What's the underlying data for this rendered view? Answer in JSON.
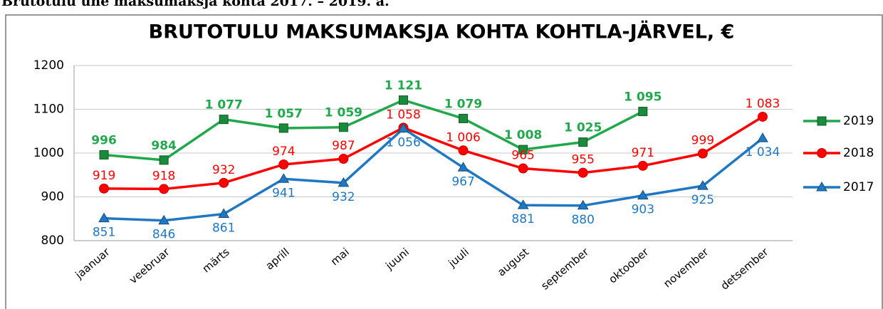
{
  "heading": "Brutotulu ühe maksumaksja kohta 2017. – 2019. a.",
  "chart_data": {
    "type": "line",
    "title": "BRUTOTULU MAKSUMAKSJA KOHTA KOHTLA-JÄRVEL, €",
    "categories": [
      "jaanuar",
      "veebruar",
      "märts",
      "aprill",
      "mai",
      "juuni",
      "juuli",
      "august",
      "september",
      "oktoober",
      "november",
      "detsember"
    ],
    "series": [
      {
        "name": "2019",
        "color": "#22a84c",
        "marker": "square",
        "values": [
          996,
          984,
          1077,
          1057,
          1059,
          1121,
          1079,
          1008,
          1025,
          1095,
          null,
          null
        ],
        "value_labels": [
          "996",
          "984",
          "1 077",
          "1 057",
          "1 059",
          "1 121",
          "1 079",
          "1 008",
          "1 025",
          "1 095",
          null,
          null
        ]
      },
      {
        "name": "2018",
        "color": "#ff0000",
        "marker": "circle",
        "values": [
          919,
          918,
          932,
          974,
          987,
          1058,
          1006,
          965,
          955,
          971,
          999,
          1083
        ],
        "value_labels": [
          "919",
          "918",
          "932",
          "974",
          "987",
          "1 058",
          "1 006",
          "965",
          "955",
          "971",
          "999",
          "1 083"
        ]
      },
      {
        "name": "2017",
        "color": "#1f78c1",
        "marker": "triangle",
        "values": [
          851,
          846,
          861,
          941,
          932,
          1056,
          967,
          881,
          880,
          903,
          925,
          1034
        ],
        "value_labels": [
          "851",
          "846",
          "861",
          "941",
          "932",
          "1 056",
          "967",
          "881",
          "880",
          "903",
          "925",
          "1 034"
        ]
      }
    ],
    "ylim": [
      800,
      1200
    ],
    "yticks": [
      800,
      900,
      1000,
      1100,
      1200
    ],
    "grid": true,
    "legend": "right"
  }
}
